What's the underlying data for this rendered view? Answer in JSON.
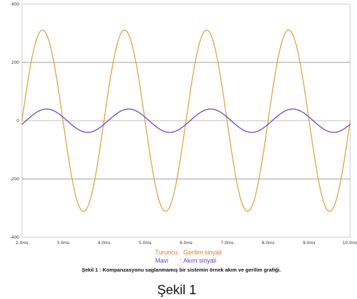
{
  "chart_data": {
    "type": "line",
    "x_unit": "ms",
    "xlim": [
      2,
      10
    ],
    "ylim": [
      -400,
      400
    ],
    "grid": true,
    "legend_position": "bottom",
    "x_ticks": [
      "2.0ms",
      "3.0ms",
      "4.0ms",
      "5.0ms",
      "6.0ms",
      "7.0ms",
      "8.0ms",
      "9.0ms",
      "10.0ms"
    ],
    "y_ticks": [
      "400",
      "200",
      "0",
      "-200",
      "-400"
    ],
    "series": [
      {
        "name": "Gerilim sinyali",
        "legend_prefix": "Turuncu:",
        "color": "#d9a441",
        "amplitude": 311,
        "period_ms": 2,
        "phase_ms": 2,
        "x": [
          2.0,
          2.5,
          3.0,
          3.5,
          4.0,
          4.5,
          5.0,
          5.5,
          6.0,
          6.5,
          7.0,
          7.5,
          8.0,
          8.5,
          9.0,
          9.5,
          10.0
        ],
        "values": [
          0,
          311,
          0,
          -311,
          0,
          311,
          0,
          -311,
          0,
          311,
          0,
          -311,
          0,
          311,
          0,
          -311,
          0
        ]
      },
      {
        "name": "Akım sinyali",
        "legend_prefix": "Mavi",
        "legend_sep": ":",
        "color": "#6a3fc8",
        "amplitude": 40,
        "period_ms": 2,
        "phase_ms": 2.1,
        "x": [
          2.1,
          2.6,
          3.1,
          3.6,
          4.1,
          4.6,
          5.1,
          5.6,
          6.1,
          6.6,
          7.1,
          7.6,
          8.1,
          8.6,
          9.1,
          9.6
        ],
        "values": [
          0,
          40,
          0,
          -40,
          0,
          40,
          0,
          -40,
          0,
          40,
          0,
          -40,
          0,
          40,
          0,
          -40
        ]
      }
    ]
  },
  "caption": "Şekil 1 : Kompanzasyonu saglanmamış bir sistemin örnek akım ve gerilim grafiği.",
  "figure_title": "Şekil 1"
}
